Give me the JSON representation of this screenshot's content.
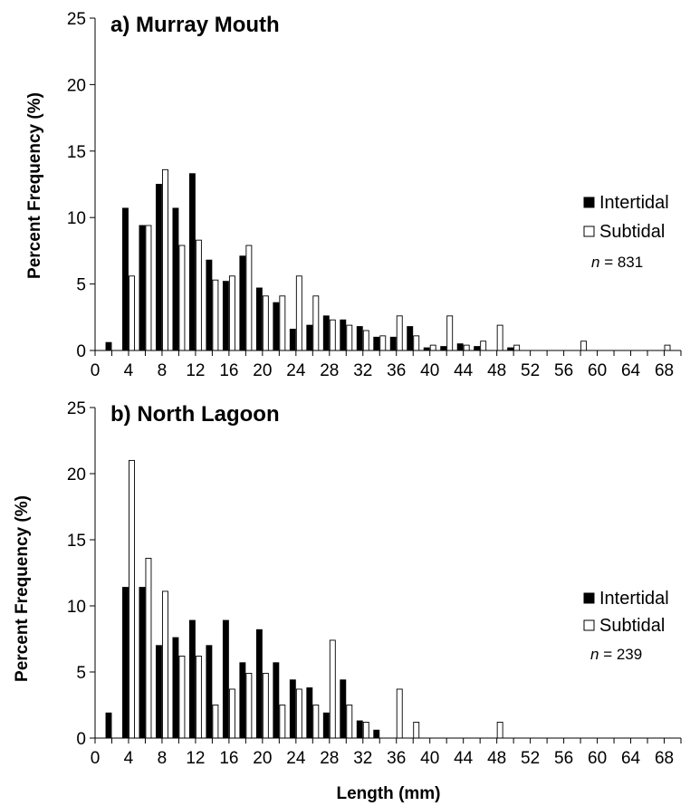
{
  "chart_data": [
    {
      "type": "bar",
      "title": "a) Murray Mouth",
      "ylabel": "Percent Frequency (%)",
      "xlabel": "",
      "ylim": [
        0,
        25
      ],
      "yticks": [
        0,
        5,
        10,
        15,
        20,
        25
      ],
      "xtick_labels": [
        "0",
        "4",
        "8",
        "12",
        "16",
        "20",
        "24",
        "28",
        "32",
        "36",
        "40",
        "44",
        "48",
        "52",
        "56",
        "60",
        "64",
        "68"
      ],
      "categories": [
        2,
        4,
        6,
        8,
        10,
        12,
        14,
        16,
        18,
        20,
        22,
        24,
        26,
        28,
        30,
        32,
        34,
        36,
        38,
        40,
        42,
        44,
        46,
        48,
        50,
        52,
        54,
        56,
        58,
        60,
        62,
        64,
        66,
        68
      ],
      "series": [
        {
          "name": "Intertidal",
          "color": "#000000",
          "values": [
            0.6,
            10.7,
            9.4,
            12.5,
            10.7,
            13.3,
            6.8,
            5.2,
            7.1,
            4.7,
            3.6,
            1.6,
            1.9,
            2.6,
            2.3,
            1.8,
            1.0,
            1.0,
            1.8,
            0.2,
            0.3,
            0.5,
            0.3,
            0,
            0.2,
            0,
            0,
            0,
            0,
            0,
            0,
            0,
            0,
            0
          ]
        },
        {
          "name": "Subtidal",
          "color": "#ffffff",
          "values": [
            0,
            5.6,
            9.4,
            13.6,
            7.9,
            8.3,
            5.3,
            5.6,
            7.9,
            4.1,
            4.1,
            5.6,
            4.1,
            2.3,
            1.9,
            1.5,
            1.1,
            2.6,
            1.1,
            0.4,
            2.6,
            0.4,
            0.7,
            1.9,
            0.4,
            0,
            0,
            0,
            0.7,
            0,
            0,
            0,
            0,
            0.4
          ]
        }
      ],
      "legend": {
        "position": "right",
        "items": [
          "Intertidal",
          "Subtidal"
        ]
      },
      "n_label": {
        "prefix": "n",
        "suffix": " = 831"
      }
    },
    {
      "type": "bar",
      "title": "b) North Lagoon",
      "ylabel": "Percent Frequency (%)",
      "xlabel": "Length (mm)",
      "ylim": [
        0,
        25
      ],
      "yticks": [
        0,
        5,
        10,
        15,
        20,
        25
      ],
      "xtick_labels": [
        "0",
        "4",
        "8",
        "12",
        "16",
        "20",
        "24",
        "28",
        "32",
        "36",
        "40",
        "44",
        "48",
        "52",
        "56",
        "60",
        "64",
        "68"
      ],
      "categories": [
        2,
        4,
        6,
        8,
        10,
        12,
        14,
        16,
        18,
        20,
        22,
        24,
        26,
        28,
        30,
        32,
        34,
        36,
        38,
        40,
        42,
        44,
        46,
        48,
        50,
        52,
        54,
        56,
        58,
        60,
        62,
        64,
        66,
        68
      ],
      "series": [
        {
          "name": "Intertidal",
          "color": "#000000",
          "values": [
            1.9,
            11.4,
            11.4,
            7.0,
            7.6,
            8.9,
            7.0,
            8.9,
            5.7,
            8.2,
            5.7,
            4.4,
            3.8,
            1.9,
            4.4,
            1.3,
            0.6,
            0,
            0,
            0,
            0,
            0,
            0,
            0,
            0,
            0,
            0,
            0,
            0,
            0,
            0,
            0,
            0,
            0
          ]
        },
        {
          "name": "Subtidal",
          "color": "#ffffff",
          "values": [
            0,
            21.0,
            13.6,
            11.1,
            6.2,
            6.2,
            2.5,
            3.7,
            4.9,
            4.9,
            2.5,
            3.7,
            2.5,
            7.4,
            2.5,
            1.2,
            0,
            3.7,
            1.2,
            0,
            0,
            0,
            0,
            1.2,
            0,
            0,
            0,
            0,
            0,
            0,
            0,
            0,
            0,
            0
          ]
        }
      ],
      "legend": {
        "position": "right",
        "items": [
          "Intertidal",
          "Subtidal"
        ]
      },
      "n_label": {
        "prefix": "n",
        "suffix": " = 239"
      }
    }
  ]
}
